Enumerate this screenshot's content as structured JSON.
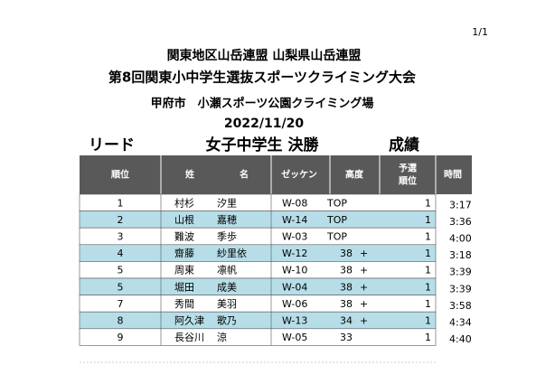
{
  "page_number": "1/1",
  "header": {
    "org": "関東地区山岳連盟 山梨県山岳連盟",
    "title": "第8回関東小中学生選抜スポーツクライミング大会",
    "venue": "甲府市　小瀬スポーツ公園クライミング場",
    "date": "2022/11/20"
  },
  "section": {
    "discipline": "リード",
    "category": "女子中学生 決勝",
    "label": "成績"
  },
  "table": {
    "columns": {
      "rank": "順位",
      "family": "姓",
      "given": "名",
      "bib": "ゼッケン",
      "height": "高度",
      "prelim": [
        "予選",
        "順位"
      ],
      "time": "時間"
    },
    "rows": [
      {
        "rank": "1",
        "family": "村杉",
        "given": "汐里",
        "bib": "W-08",
        "height": "TOP",
        "prelim": "1",
        "time": "3:17"
      },
      {
        "rank": "2",
        "family": "山根",
        "given": "嘉穂",
        "bib": "W-14",
        "height": "TOP",
        "prelim": "1",
        "time": "3:36"
      },
      {
        "rank": "3",
        "family": "難波",
        "given": "季歩",
        "bib": "W-03",
        "height": "TOP",
        "prelim": "1",
        "time": "4:00"
      },
      {
        "rank": "4",
        "family": "齋藤",
        "given": "紗里依",
        "bib": "W-12",
        "height": "38",
        "modifier": "+",
        "prelim": "1",
        "time": "3:18"
      },
      {
        "rank": "5",
        "family": "周東",
        "given": "凛帆",
        "bib": "W-10",
        "height": "38",
        "modifier": "+",
        "prelim": "1",
        "time": "3:39"
      },
      {
        "rank": "5",
        "family": "堀田",
        "given": "成美",
        "bib": "W-04",
        "height": "38",
        "modifier": "+",
        "prelim": "1",
        "time": "3:39"
      },
      {
        "rank": "7",
        "family": "秀間",
        "given": "美羽",
        "bib": "W-06",
        "height": "38",
        "modifier": "+",
        "prelim": "1",
        "time": "3:58"
      },
      {
        "rank": "8",
        "family": "阿久津",
        "given": "歌乃",
        "bib": "W-13",
        "height": "34",
        "modifier": "+",
        "prelim": "1",
        "time": "4:34"
      },
      {
        "rank": "9",
        "family": "長谷川",
        "given": "涼",
        "bib": "W-05",
        "height": "33",
        "prelim": "1",
        "time": "4:40"
      }
    ]
  }
}
